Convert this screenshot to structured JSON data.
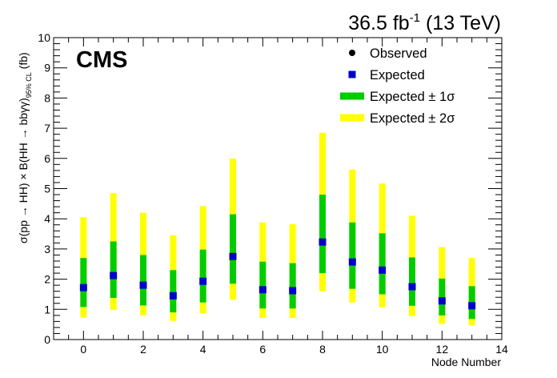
{
  "header": {
    "lumi_value": "36.5 fb",
    "lumi_exp": "-1",
    "energy": " (13 TeV)"
  },
  "experiment_label": "CMS",
  "chart_data": {
    "type": "scatter",
    "xlabel": "Node Number",
    "ylabel": "σ(pp → HH) × B(HH → bbγγ)",
    "ylabel_sub": "95% CL",
    "ylabel_unit": " (fb)",
    "xlim": [
      -1,
      14
    ],
    "ylim": [
      0,
      10
    ],
    "x_ticks": [
      0,
      2,
      4,
      6,
      8,
      10,
      12,
      14
    ],
    "y_ticks": [
      0,
      1,
      2,
      3,
      4,
      5,
      6,
      7,
      8,
      9,
      10
    ],
    "grid": false,
    "legend_position": "top-right",
    "colors": {
      "observed": "#000000",
      "expected": "#0000cc",
      "band_1sigma": "#00cc00",
      "band_2sigma": "#ffff00"
    },
    "legend": [
      {
        "key": "observed",
        "label": "Observed"
      },
      {
        "key": "expected",
        "label": "Expected"
      },
      {
        "key": "band_1sigma",
        "label": "Expected ± 1σ"
      },
      {
        "key": "band_2sigma",
        "label": "Expected ± 2σ"
      }
    ],
    "nodes": [
      0,
      1,
      2,
      3,
      4,
      5,
      6,
      7,
      8,
      9,
      10,
      11,
      12,
      13
    ],
    "expected": [
      1.72,
      2.12,
      1.8,
      1.45,
      1.93,
      2.75,
      1.65,
      1.62,
      3.23,
      2.57,
      2.3,
      1.75,
      1.28,
      1.12
    ],
    "band_1sigma_low": [
      1.08,
      1.38,
      1.13,
      0.9,
      1.23,
      1.85,
      1.03,
      1.03,
      2.2,
      1.68,
      1.5,
      1.12,
      0.8,
      0.68
    ],
    "band_1sigma_high": [
      2.7,
      3.25,
      2.8,
      2.3,
      2.98,
      4.15,
      2.58,
      2.53,
      4.8,
      3.88,
      3.52,
      2.72,
      2.02,
      1.77
    ],
    "band_2sigma_low": [
      0.73,
      0.98,
      0.8,
      0.62,
      0.87,
      1.32,
      0.72,
      0.72,
      1.6,
      1.23,
      1.07,
      0.78,
      0.52,
      0.47
    ],
    "band_2sigma_high": [
      4.05,
      4.85,
      4.2,
      3.45,
      4.42,
      6.0,
      3.88,
      3.82,
      6.85,
      5.63,
      5.17,
      4.1,
      3.06,
      2.7
    ]
  }
}
